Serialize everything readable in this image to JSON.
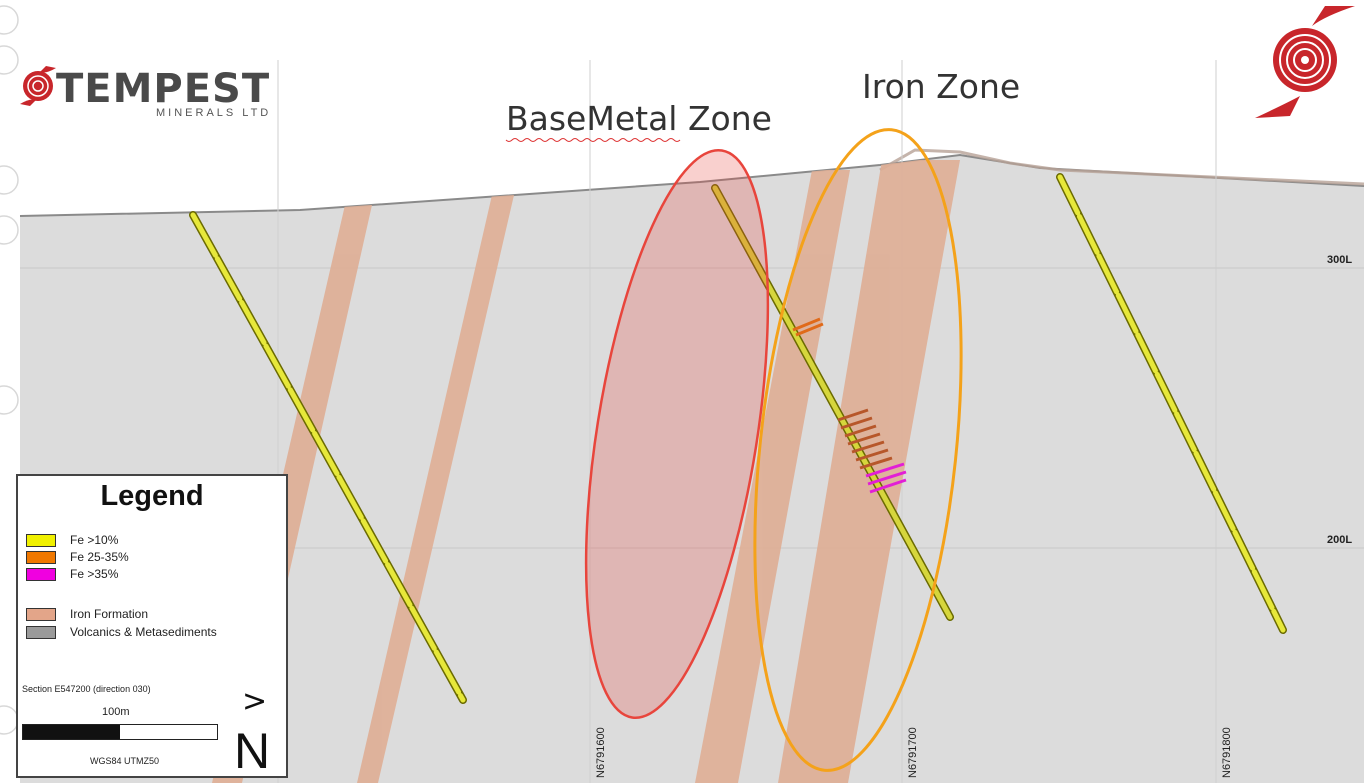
{
  "logo": {
    "word": "TEMPEST",
    "sub": "MINERALS LTD",
    "brand_color": "#c8262b"
  },
  "zones": {
    "base_metal": "BaseMetal Zone",
    "iron": "Iron Zone",
    "base_metal_color": "#e8453c",
    "iron_color": "#f4a21a"
  },
  "levels": [
    "300L",
    "200L"
  ],
  "northings": [
    "N6791600",
    "N6791700",
    "N6791800"
  ],
  "legend": {
    "title": "Legend",
    "items": [
      {
        "label": "Fe >10%",
        "color": "#f0f000"
      },
      {
        "label": "Fe 25-35%",
        "color": "#f07800"
      },
      {
        "label": "Fe >35%",
        "color": "#f000e0"
      },
      {
        "label": "Iron Formation",
        "color": "#e3a589"
      },
      {
        "label": "Volcanics & Metasediments",
        "color": "#9a9a9a"
      }
    ],
    "section": "Section E547200 (direction 030)",
    "scale": "100m",
    "datum": "WGS84 UTMZ50",
    "north_arrow": ">",
    "north_letter": "N"
  }
}
